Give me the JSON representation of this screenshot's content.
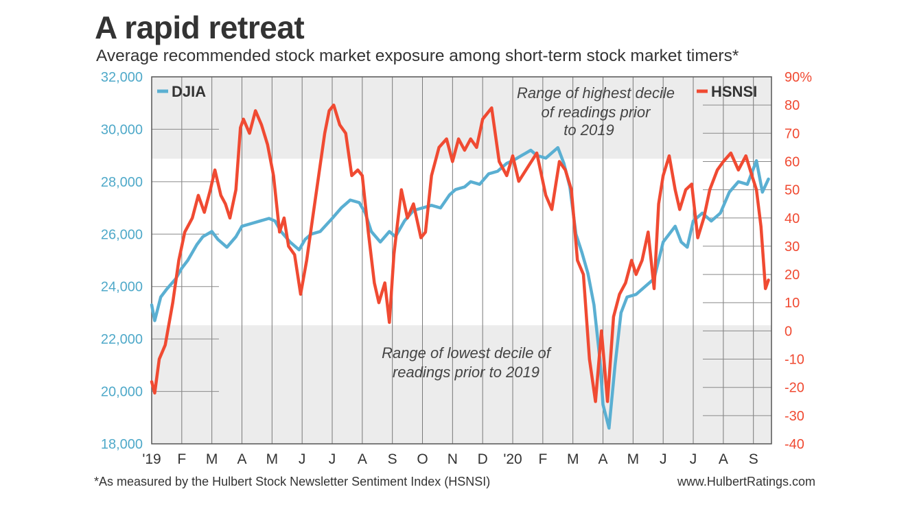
{
  "header": {
    "title": "A rapid retreat",
    "subtitle": "Average recommended stock market exposure among short-term stock market timers*"
  },
  "footer": {
    "footnote": "*As measured by the Hulbert Stock Newsletter Sentiment Index (HSNSI)",
    "source": "www.HulbertRatings.com"
  },
  "colors": {
    "djia": "#5aafd2",
    "hsnsi": "#f04a32",
    "band": "#ececec",
    "grid": "#777777"
  },
  "chart_data": {
    "type": "line",
    "title": "A rapid retreat",
    "subtitle": "Average recommended stock market exposure among short-term stock market timers*",
    "x_tick_labels": [
      "'19",
      "F",
      "M",
      "A",
      "M",
      "J",
      "J",
      "A",
      "S",
      "O",
      "N",
      "D",
      "'20",
      "F",
      "M",
      "A",
      "M",
      "J",
      "J",
      "A",
      "S"
    ],
    "x_unit": "months since Jan 2019",
    "x_range": [
      0,
      20.6
    ],
    "y_left": {
      "label": "DJIA",
      "ylim": [
        18000,
        32000
      ],
      "ticks": [
        "18,000",
        "20,000",
        "22,000",
        "24,000",
        "26,000",
        "28,000",
        "30,000",
        "32,000"
      ]
    },
    "y_right": {
      "label": "HSNSI",
      "ylim": [
        -40,
        90
      ],
      "ticks": [
        "-40",
        "-30",
        "-20",
        "-10",
        "0",
        "10",
        "20",
        "30",
        "40",
        "50",
        "60",
        "70",
        "80",
        "90%"
      ]
    },
    "bands": [
      {
        "axis": "right",
        "from": 61,
        "to": 90,
        "label_lines": [
          "Range of highest decile",
          "of readings prior",
          "to 2019"
        ]
      },
      {
        "axis": "right",
        "from": -40,
        "to": 2,
        "label_lines": [
          "Range of lowest decile of",
          "readings prior to 2019"
        ]
      }
    ],
    "series": [
      {
        "name": "DJIA",
        "axis": "left",
        "x": [
          0.0,
          0.1,
          0.3,
          0.5,
          0.8,
          1.0,
          1.2,
          1.5,
          1.7,
          2.0,
          2.2,
          2.5,
          2.8,
          3.0,
          3.3,
          3.6,
          3.9,
          4.1,
          4.3,
          4.6,
          4.9,
          5.1,
          5.3,
          5.6,
          6.0,
          6.3,
          6.6,
          6.9,
          7.1,
          7.3,
          7.6,
          7.9,
          8.1,
          8.4,
          8.7,
          9.0,
          9.3,
          9.6,
          9.9,
          10.1,
          10.4,
          10.6,
          10.9,
          11.2,
          11.5,
          11.8,
          12.0,
          12.3,
          12.6,
          12.8,
          13.1,
          13.3,
          13.5,
          13.7,
          13.9,
          14.1,
          14.3,
          14.5,
          14.7,
          14.9,
          15.0,
          15.2,
          15.4,
          15.6,
          15.8,
          16.1,
          16.4,
          16.7,
          17.0,
          17.2,
          17.4,
          17.6,
          17.8,
          18.0,
          18.3,
          18.6,
          18.9,
          19.2,
          19.5,
          19.8,
          20.1,
          20.3,
          20.5
        ],
        "values": [
          23300,
          22700,
          23600,
          23900,
          24300,
          24700,
          25000,
          25600,
          25900,
          26100,
          25800,
          25500,
          25900,
          26300,
          26400,
          26500,
          26600,
          26500,
          26100,
          25700,
          25400,
          25800,
          26000,
          26100,
          26600,
          27000,
          27300,
          27200,
          26800,
          26100,
          25700,
          26100,
          25900,
          26500,
          26900,
          27000,
          27100,
          27000,
          27500,
          27700,
          27800,
          28000,
          27900,
          28300,
          28400,
          28700,
          28800,
          29000,
          29200,
          29000,
          28900,
          29100,
          29300,
          28700,
          27800,
          26000,
          25300,
          24500,
          23300,
          21200,
          19500,
          18600,
          21000,
          23000,
          23600,
          23700,
          24000,
          24300,
          25700,
          26000,
          26300,
          25700,
          25500,
          26500,
          26800,
          26500,
          26800,
          27600,
          28000,
          27900,
          28800,
          27600,
          28100
        ]
      },
      {
        "name": "HSNSI",
        "axis": "right",
        "x": [
          0.0,
          0.1,
          0.25,
          0.45,
          0.7,
          0.9,
          1.1,
          1.35,
          1.55,
          1.75,
          1.95,
          2.1,
          2.3,
          2.45,
          2.6,
          2.8,
          2.95,
          3.05,
          3.25,
          3.45,
          3.65,
          3.85,
          4.05,
          4.25,
          4.4,
          4.55,
          4.75,
          4.95,
          5.15,
          5.35,
          5.55,
          5.75,
          5.9,
          6.05,
          6.25,
          6.45,
          6.65,
          6.85,
          7.0,
          7.2,
          7.4,
          7.55,
          7.75,
          7.9,
          8.05,
          8.3,
          8.5,
          8.7,
          8.95,
          9.1,
          9.3,
          9.55,
          9.8,
          10.0,
          10.2,
          10.4,
          10.6,
          10.8,
          11.0,
          11.3,
          11.55,
          11.8,
          12.0,
          12.2,
          12.5,
          12.8,
          13.1,
          13.3,
          13.55,
          13.75,
          13.95,
          14.15,
          14.35,
          14.55,
          14.75,
          14.95,
          15.15,
          15.35,
          15.55,
          15.75,
          15.95,
          16.1,
          16.3,
          16.5,
          16.7,
          16.85,
          17.0,
          17.2,
          17.4,
          17.55,
          17.75,
          17.95,
          18.15,
          18.35,
          18.55,
          18.8,
          19.0,
          19.25,
          19.5,
          19.75,
          19.95,
          20.1,
          20.25,
          20.4,
          20.5
        ],
        "values": [
          -18,
          -22,
          -10,
          -5,
          10,
          25,
          35,
          40,
          48,
          42,
          50,
          57,
          48,
          45,
          40,
          50,
          72,
          75,
          70,
          78,
          73,
          66,
          55,
          35,
          40,
          30,
          27,
          13,
          25,
          40,
          55,
          70,
          78,
          80,
          73,
          70,
          55,
          57,
          55,
          35,
          17,
          10,
          17,
          3,
          27,
          50,
          40,
          45,
          33,
          35,
          55,
          65,
          68,
          60,
          68,
          64,
          68,
          65,
          75,
          79,
          60,
          55,
          62,
          53,
          58,
          63,
          48,
          43,
          60,
          57,
          50,
          25,
          20,
          -10,
          -25,
          0,
          -25,
          5,
          13,
          17,
          25,
          20,
          25,
          35,
          15,
          45,
          55,
          62,
          50,
          43,
          50,
          52,
          33,
          40,
          50,
          57,
          60,
          63,
          57,
          62,
          55,
          50,
          37,
          15,
          18
        ]
      }
    ]
  }
}
